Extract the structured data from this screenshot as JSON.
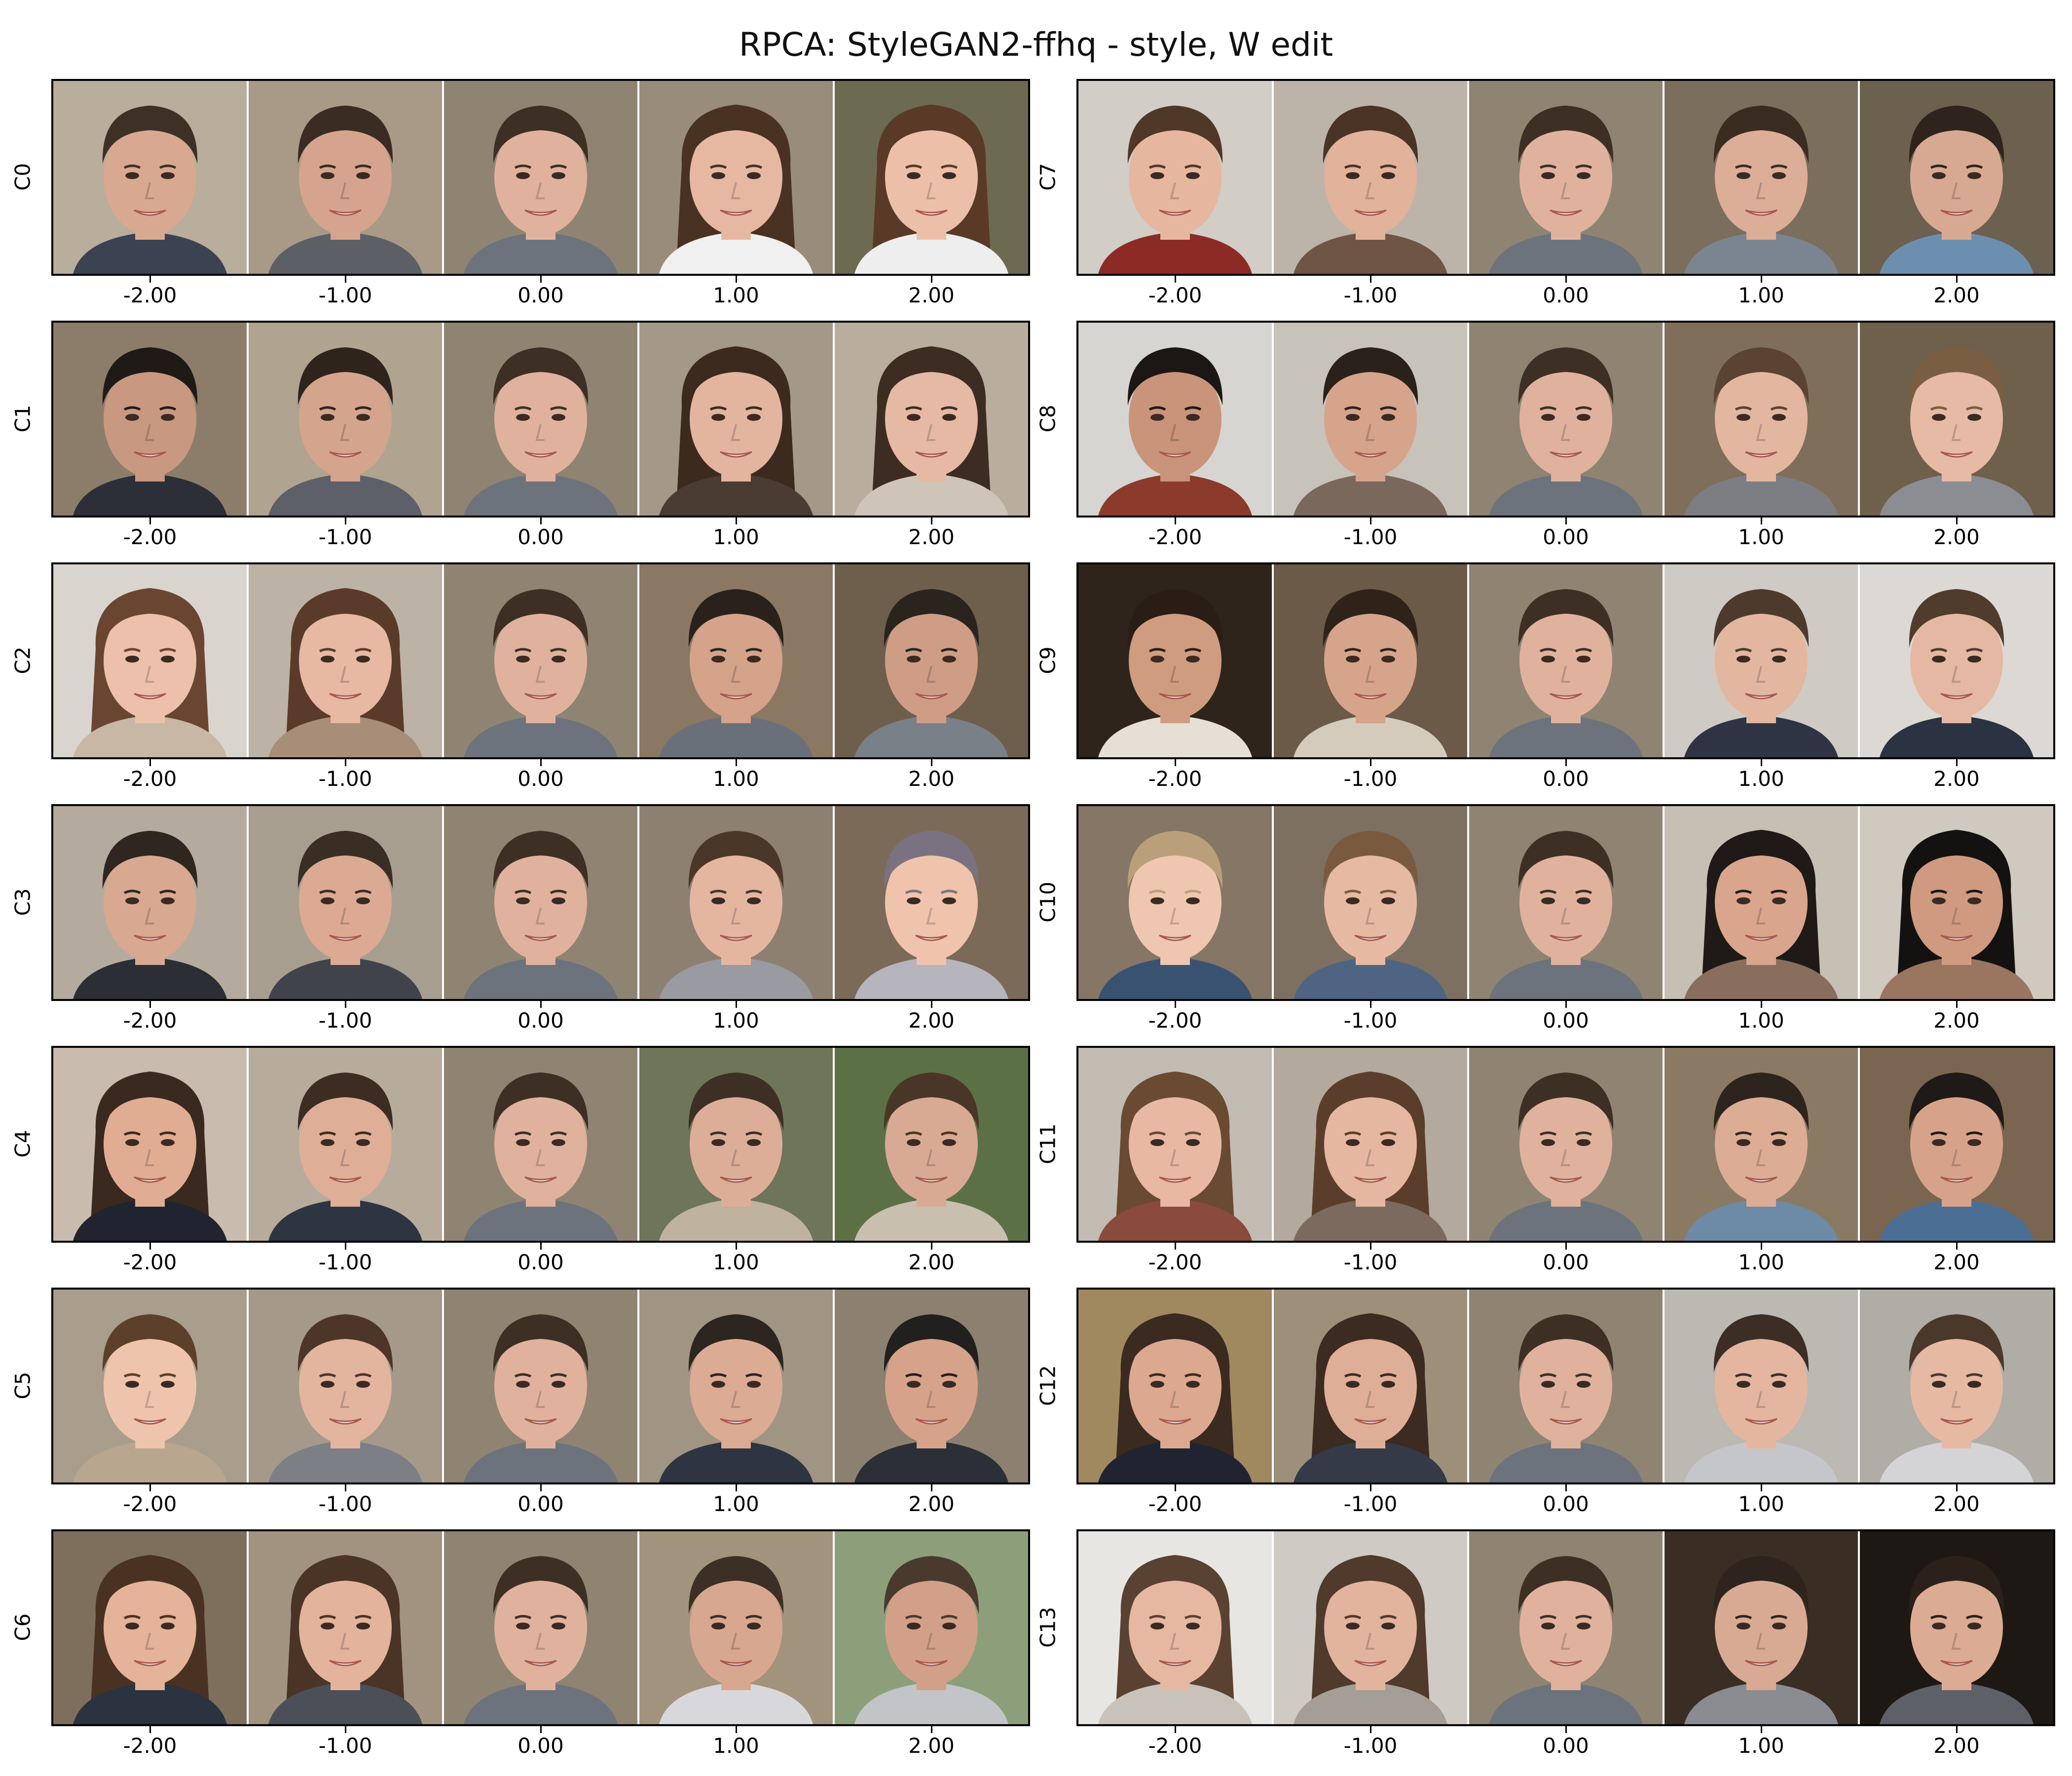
{
  "title": "RPCA: StyleGAN2-ffhq - style, W edit",
  "tick_labels": [
    "-2.00",
    "-1.00",
    "0.00",
    "1.00",
    "2.00"
  ],
  "components": [
    "C0",
    "C1",
    "C2",
    "C3",
    "C4",
    "C5",
    "C6",
    "C7",
    "C8",
    "C9",
    "C10",
    "C11",
    "C12",
    "C13"
  ],
  "cells": [
    [
      {
        "bg": "#b9ad9b",
        "hair": "#3d3126",
        "skin": "#d9a891",
        "cloth": "#3b4252",
        "long": false
      },
      {
        "bg": "#a89a86",
        "hair": "#3a2c22",
        "skin": "#d6a48e",
        "cloth": "#5c5f66",
        "long": false
      },
      {
        "bg": "#8f8472",
        "hair": "#3e2f25",
        "skin": "#e0b29d",
        "cloth": "#6d737c",
        "long": false
      },
      {
        "bg": "#9a8c7a",
        "hair": "#4a3222",
        "skin": "#e6b8a2",
        "cloth": "#f0f0f0",
        "long": true
      },
      {
        "bg": "#6d6a52",
        "hair": "#5a3a26",
        "skin": "#ecc0a8",
        "cloth": "#eeeeee",
        "long": true
      }
    ],
    [
      {
        "bg": "#8c7d6b",
        "hair": "#201a16",
        "skin": "#c99880",
        "cloth": "#2c2f38",
        "long": false
      },
      {
        "bg": "#b0a390",
        "hair": "#2f241c",
        "skin": "#d4a48d",
        "cloth": "#5d6068",
        "long": false
      },
      {
        "bg": "#8f8472",
        "hair": "#3e2f25",
        "skin": "#e0b29d",
        "cloth": "#6d737c",
        "long": false
      },
      {
        "bg": "#a49888",
        "hair": "#3c2a1f",
        "skin": "#e3b49e",
        "cloth": "#4b3c33",
        "long": true
      },
      {
        "bg": "#b9ae9e",
        "hair": "#3d2c21",
        "skin": "#e6b9a4",
        "cloth": "#cfc4b8",
        "long": true
      }
    ],
    [
      {
        "bg": "#d9d4ce",
        "hair": "#6a4632",
        "skin": "#ecc0aa",
        "cloth": "#c9b7a6",
        "long": true
      },
      {
        "bg": "#bcb2a5",
        "hair": "#5a3b29",
        "skin": "#e7b8a2",
        "cloth": "#a88d78",
        "long": true
      },
      {
        "bg": "#8f8472",
        "hair": "#3e2f25",
        "skin": "#e0b29d",
        "cloth": "#6d737c",
        "long": false
      },
      {
        "bg": "#8a7862",
        "hair": "#2a211c",
        "skin": "#d5a28a",
        "cloth": "#6a7079",
        "long": false
      },
      {
        "bg": "#6e5f4c",
        "hair": "#2b231e",
        "skin": "#cf9d85",
        "cloth": "#7a8088",
        "long": false
      }
    ],
    [
      {
        "bg": "#b4ab9e",
        "hair": "#2e261f",
        "skin": "#d8a890",
        "cloth": "#2b2e35",
        "long": false
      },
      {
        "bg": "#a89e90",
        "hair": "#3a2e24",
        "skin": "#dcaa93",
        "cloth": "#40434b",
        "long": false
      },
      {
        "bg": "#8f8472",
        "hair": "#3e2f25",
        "skin": "#e0b29d",
        "cloth": "#6d737c",
        "long": false
      },
      {
        "bg": "#8e8070",
        "hair": "#4a3728",
        "skin": "#e4b6a0",
        "cloth": "#9a9aa2",
        "long": false
      },
      {
        "bg": "#7b6a58",
        "hair": "#7a7280",
        "skin": "#efc3ac",
        "cloth": "#b6b4bc",
        "long": false
      }
    ],
    [
      {
        "bg": "#c9bcae",
        "hair": "#3a291f",
        "skin": "#e0ad93",
        "cloth": "#1f2430",
        "long": true
      },
      {
        "bg": "#b7ab9c",
        "hair": "#3d2c21",
        "skin": "#dfae96",
        "cloth": "#2d3442",
        "long": false
      },
      {
        "bg": "#8f8472",
        "hair": "#3e2f25",
        "skin": "#e0b29d",
        "cloth": "#6d737c",
        "long": false
      },
      {
        "bg": "#6f7558",
        "hair": "#3e2f25",
        "skin": "#dcae98",
        "cloth": "#bfb29f",
        "long": false
      },
      {
        "bg": "#5c7045",
        "hair": "#4a3626",
        "skin": "#d9aa93",
        "cloth": "#c9bfae",
        "long": false
      }
    ],
    [
      {
        "bg": "#a99d8c",
        "hair": "#5c402c",
        "skin": "#efc4ad",
        "cloth": "#b9a68f",
        "long": false
      },
      {
        "bg": "#a5998a",
        "hair": "#4d3627",
        "skin": "#e3b49e",
        "cloth": "#7c7f86",
        "long": false
      },
      {
        "bg": "#8f8472",
        "hair": "#3e2f25",
        "skin": "#e0b29d",
        "cloth": "#6d737c",
        "long": false
      },
      {
        "bg": "#a09583",
        "hair": "#2d2520",
        "skin": "#dcab94",
        "cloth": "#2f3442",
        "long": false
      },
      {
        "bg": "#8c8070",
        "hair": "#22201e",
        "skin": "#d6a38a",
        "cloth": "#2b2f38",
        "long": false
      }
    ],
    [
      {
        "bg": "#7d6f5c",
        "hair": "#4a3222",
        "skin": "#e4b39a",
        "cloth": "#2c3340",
        "long": true
      },
      {
        "bg": "#a1937f",
        "hair": "#4a3426",
        "skin": "#e3b39c",
        "cloth": "#4b4f57",
        "long": true
      },
      {
        "bg": "#8f8472",
        "hair": "#3e2f25",
        "skin": "#e0b29d",
        "cloth": "#6d737c",
        "long": false
      },
      {
        "bg": "#a2937c",
        "hair": "#3c2f26",
        "skin": "#d8a78f",
        "cloth": "#d8d8dc",
        "long": false
      },
      {
        "bg": "#8d9f7a",
        "hair": "#4a3a2e",
        "skin": "#d2a088",
        "cloth": "#c2c4c8",
        "long": false
      }
    ],
    [
      {
        "bg": "#d2cdc6",
        "hair": "#4f3828",
        "skin": "#e7b69f",
        "cloth": "#8c2b25",
        "long": false
      },
      {
        "bg": "#bcb4a8",
        "hair": "#4a3426",
        "skin": "#e2b29b",
        "cloth": "#6f5546",
        "long": false
      },
      {
        "bg": "#8f8472",
        "hair": "#3e2f25",
        "skin": "#e0b29d",
        "cloth": "#6d737c",
        "long": false
      },
      {
        "bg": "#7b6e5c",
        "hair": "#3b2c22",
        "skin": "#dcad97",
        "cloth": "#7b8592",
        "long": false
      },
      {
        "bg": "#6c604f",
        "hair": "#2e241d",
        "skin": "#d8a992",
        "cloth": "#6c8fb0",
        "long": false
      }
    ],
    [
      {
        "bg": "#d7d5d1",
        "hair": "#1c1714",
        "skin": "#c99479",
        "cloth": "#8c3a2c",
        "long": false
      },
      {
        "bg": "#c7c2ba",
        "hair": "#2a211b",
        "skin": "#d6a38b",
        "cloth": "#7a685c",
        "long": false
      },
      {
        "bg": "#8f8472",
        "hair": "#3e2f25",
        "skin": "#e0b29d",
        "cloth": "#6d737c",
        "long": false
      },
      {
        "bg": "#7f6f5a",
        "hair": "#5a4330",
        "skin": "#e3b6a0",
        "cloth": "#7d7e84",
        "long": false
      },
      {
        "bg": "#6f604c",
        "hair": "#7a5e42",
        "skin": "#e6baa4",
        "cloth": "#8c8d93",
        "long": false
      }
    ],
    [
      {
        "bg": "#2e241c",
        "hair": "#2a1d15",
        "skin": "#cf9c80",
        "cloth": "#e6dfd5",
        "long": false
      },
      {
        "bg": "#6b5a48",
        "hair": "#2e2219",
        "skin": "#d6a48b",
        "cloth": "#d4cbbd",
        "long": false
      },
      {
        "bg": "#8f8472",
        "hair": "#3e2f25",
        "skin": "#e0b29d",
        "cloth": "#6d737c",
        "long": false
      },
      {
        "bg": "#cfcbc4",
        "hair": "#4d3a2c",
        "skin": "#e3b6a0",
        "cloth": "#2e3444",
        "long": false
      },
      {
        "bg": "#dcd9d4",
        "hair": "#4f3c2d",
        "skin": "#e4b8a2",
        "cloth": "#2b3242",
        "long": false
      }
    ],
    [
      {
        "bg": "#857665",
        "hair": "#b9a07a",
        "skin": "#efc6b0",
        "cloth": "#3a5272",
        "long": false
      },
      {
        "bg": "#7e7060",
        "hair": "#7a5a3e",
        "skin": "#e6b9a3",
        "cloth": "#4e6482",
        "long": false
      },
      {
        "bg": "#8f8472",
        "hair": "#3e2f25",
        "skin": "#e0b29d",
        "cloth": "#6d737c",
        "long": false
      },
      {
        "bg": "#c6bfb3",
        "hair": "#1f1a17",
        "skin": "#d9a58c",
        "cloth": "#8a6e5d",
        "long": true
      },
      {
        "bg": "#cfc9bf",
        "hair": "#141210",
        "skin": "#cf9a80",
        "cloth": "#9a7560",
        "long": true
      }
    ],
    [
      {
        "bg": "#c2bcb3",
        "hair": "#6a4a32",
        "skin": "#e8b8a2",
        "cloth": "#8a4a3c",
        "long": true
      },
      {
        "bg": "#b3a99c",
        "hair": "#5a3e2b",
        "skin": "#e5b6a0",
        "cloth": "#7d6a5e",
        "long": true
      },
      {
        "bg": "#8f8472",
        "hair": "#3e2f25",
        "skin": "#e0b29d",
        "cloth": "#6d737c",
        "long": false
      },
      {
        "bg": "#8a7a64",
        "hair": "#2d241e",
        "skin": "#ddac94",
        "cloth": "#6d8aa6",
        "long": false
      },
      {
        "bg": "#7a6650",
        "hair": "#1f1a17",
        "skin": "#d6a38a",
        "cloth": "#4a6e94",
        "long": false
      }
    ],
    [
      {
        "bg": "#a0895f",
        "hair": "#3b2a1f",
        "skin": "#dca890",
        "cloth": "#1f2430",
        "long": true
      },
      {
        "bg": "#9d8f7a",
        "hair": "#3b2b20",
        "skin": "#dfae97",
        "cloth": "#343a48",
        "long": true
      },
      {
        "bg": "#8f8472",
        "hair": "#3e2f25",
        "skin": "#e0b29d",
        "cloth": "#6d737c",
        "long": false
      },
      {
        "bg": "#bcb8b2",
        "hair": "#3c2e24",
        "skin": "#e4b6a0",
        "cloth": "#c4c6ca",
        "long": false
      },
      {
        "bg": "#b0aca6",
        "hair": "#4a382b",
        "skin": "#e6b9a3",
        "cloth": "#d4d4d6",
        "long": false
      }
    ],
    [
      {
        "bg": "#e8e6e2",
        "hair": "#5a4232",
        "skin": "#e6b8a2",
        "cloth": "#c8c2ba",
        "long": true
      },
      {
        "bg": "#cfcac3",
        "hair": "#4f3a2b",
        "skin": "#e2b39d",
        "cloth": "#a49e96",
        "long": true
      },
      {
        "bg": "#8f8472",
        "hair": "#3e2f25",
        "skin": "#e0b29d",
        "cloth": "#6d737c",
        "long": false
      },
      {
        "bg": "#3a2e24",
        "hair": "#2e241d",
        "skin": "#d9aa93",
        "cloth": "#8a8c92",
        "long": false
      },
      {
        "bg": "#1e1814",
        "hair": "#2b211a",
        "skin": "#dcab93",
        "cloth": "#5e6068",
        "long": false
      }
    ]
  ]
}
